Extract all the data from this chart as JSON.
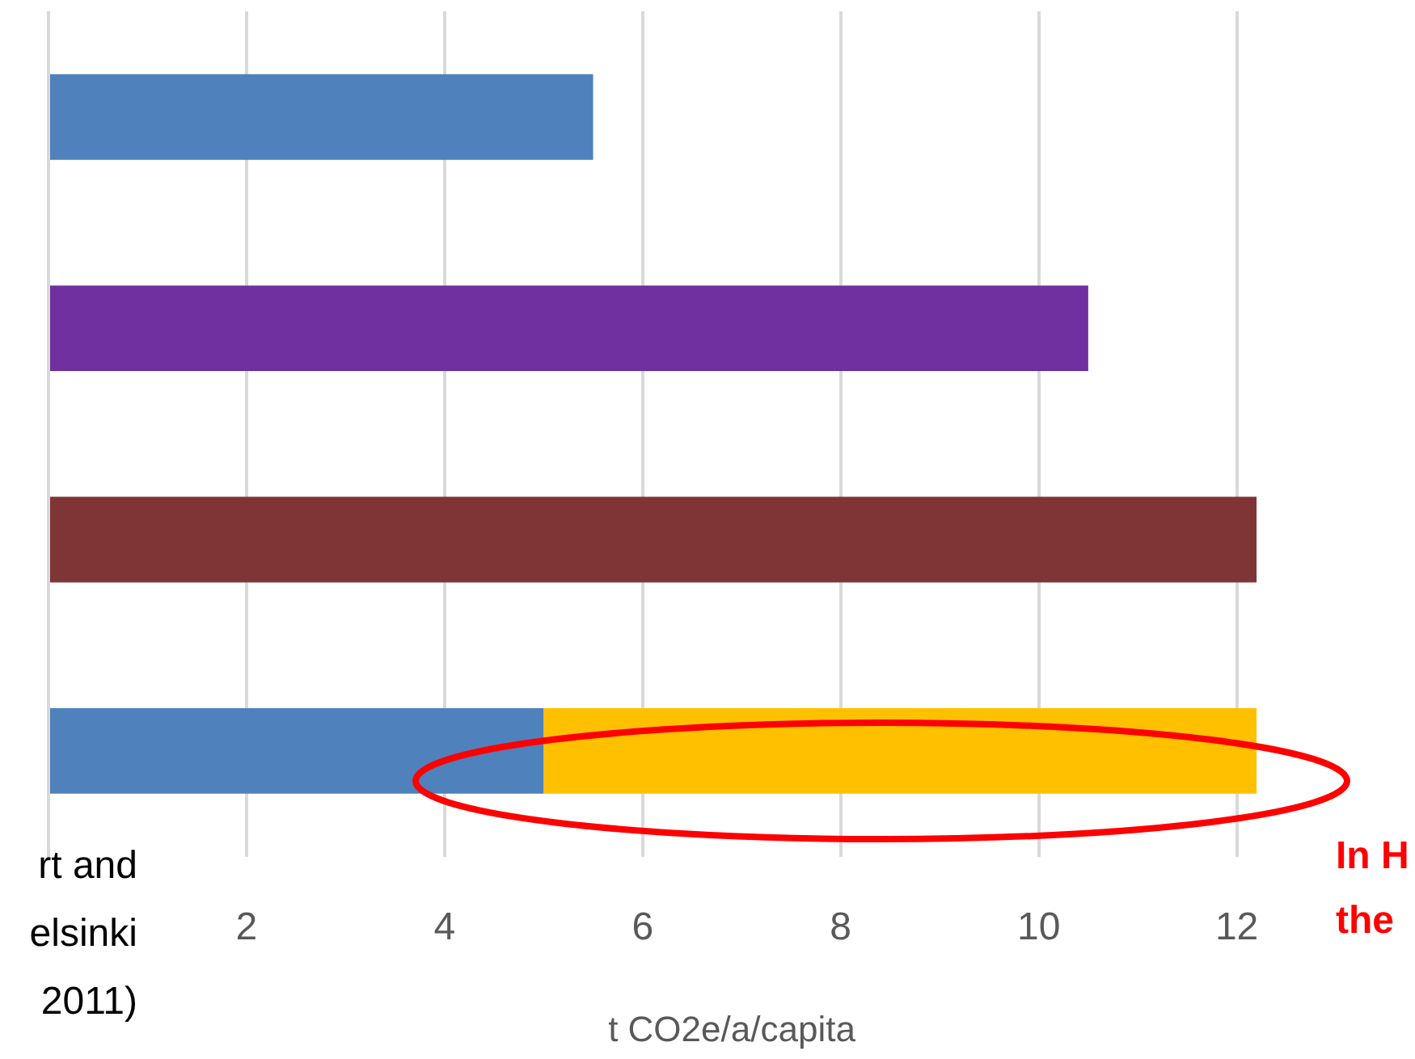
{
  "chart_data": {
    "type": "bar",
    "orientation": "horizontal",
    "stacked": true,
    "categories": [
      null,
      null,
      null,
      null
    ],
    "series": [
      {
        "colors": [
          "#4f81bd",
          "#7030a0",
          "#7f3535",
          "#4f81bd"
        ],
        "values": [
          5.5,
          10.5,
          12.2,
          5.0
        ]
      },
      {
        "color": "#ffc000",
        "values": [
          null,
          null,
          null,
          7.2
        ]
      }
    ],
    "xlim": [
      0,
      13.8
    ],
    "xticks": [
      {
        "value": 0,
        "label": null
      },
      2,
      4,
      6,
      8,
      10,
      12
    ],
    "xlabel": "t CO2e/a/capita",
    "grid": "x",
    "legend": false,
    "annotations": [
      "rt and",
      "elsinki",
      "2011)",
      "In H",
      "the"
    ]
  }
}
